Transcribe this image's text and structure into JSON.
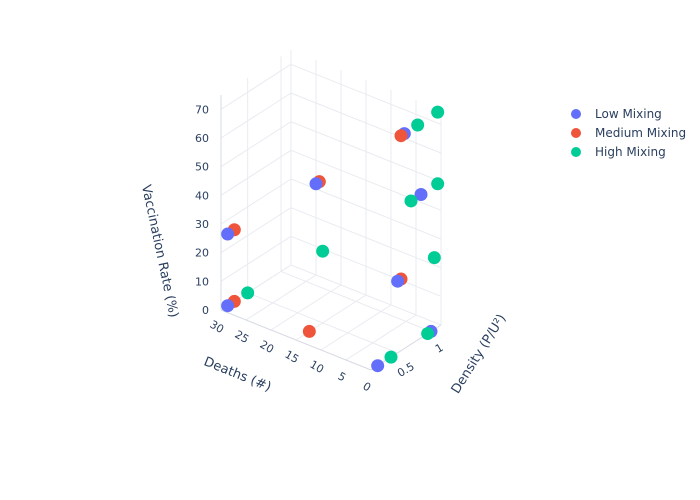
{
  "chart_data": {
    "type": "scatter3d",
    "axes": {
      "x": {
        "label": "Density (P/U²)",
        "ticks": [
          0.5,
          1
        ],
        "tick_labels": [
          "0.5",
          "1"
        ],
        "range": [
          0.1,
          1.15
        ]
      },
      "y": {
        "label": "Deaths (#)",
        "ticks": [
          0,
          5,
          10,
          15,
          20,
          25,
          30
        ],
        "tick_labels": [
          "0",
          "5",
          "10",
          "15",
          "20",
          "25",
          "30"
        ],
        "range": [
          0,
          30
        ]
      },
      "z": {
        "label": "Vaccination Rate (%)",
        "ticks": [
          0,
          10,
          20,
          30,
          40,
          50,
          60,
          70
        ],
        "tick_labels": [
          "0",
          "10",
          "20",
          "30",
          "40",
          "50",
          "60",
          "70"
        ],
        "range": [
          0,
          75
        ]
      }
    },
    "grid": true,
    "legend_position": "top-right",
    "series": [
      {
        "name": "Low Mixing",
        "color": "#636efa",
        "points": [
          {
            "x": 0.2,
            "y": 30,
            "z": 0
          },
          {
            "x": 0.2,
            "y": 30,
            "z": 25
          },
          {
            "x": 0.2,
            "y": 0,
            "z": 0
          },
          {
            "x": 0.4,
            "y": 15,
            "z": 50
          },
          {
            "x": 0.6,
            "y": 0,
            "z": 75
          },
          {
            "x": 0.5,
            "y": 0,
            "z": 25
          },
          {
            "x": 0.85,
            "y": 0,
            "z": 50
          },
          {
            "x": 1.0,
            "y": 0,
            "z": 0
          }
        ]
      },
      {
        "name": "Medium Mixing",
        "color": "#ef553b",
        "points": [
          {
            "x": 0.3,
            "y": 30,
            "z": 0
          },
          {
            "x": 0.3,
            "y": 30,
            "z": 25
          },
          {
            "x": 0.3,
            "y": 15,
            "z": 0
          },
          {
            "x": 0.45,
            "y": 15,
            "z": 50
          },
          {
            "x": 0.55,
            "y": 0,
            "z": 75
          },
          {
            "x": 0.55,
            "y": 0,
            "z": 25
          }
        ]
      },
      {
        "name": "High Mixing",
        "color": "#00cc96",
        "points": [
          {
            "x": 0.5,
            "y": 30,
            "z": 0
          },
          {
            "x": 0.5,
            "y": 15,
            "z": 25
          },
          {
            "x": 0.4,
            "y": 0,
            "z": 0
          },
          {
            "x": 0.8,
            "y": 0,
            "z": 75
          },
          {
            "x": 0.7,
            "y": 0,
            "z": 50
          },
          {
            "x": 1.1,
            "y": 0,
            "z": 75
          },
          {
            "x": 1.1,
            "y": 0,
            "z": 50
          },
          {
            "x": 1.05,
            "y": 0,
            "z": 25
          },
          {
            "x": 0.95,
            "y": 0,
            "z": 0
          }
        ]
      }
    ]
  }
}
